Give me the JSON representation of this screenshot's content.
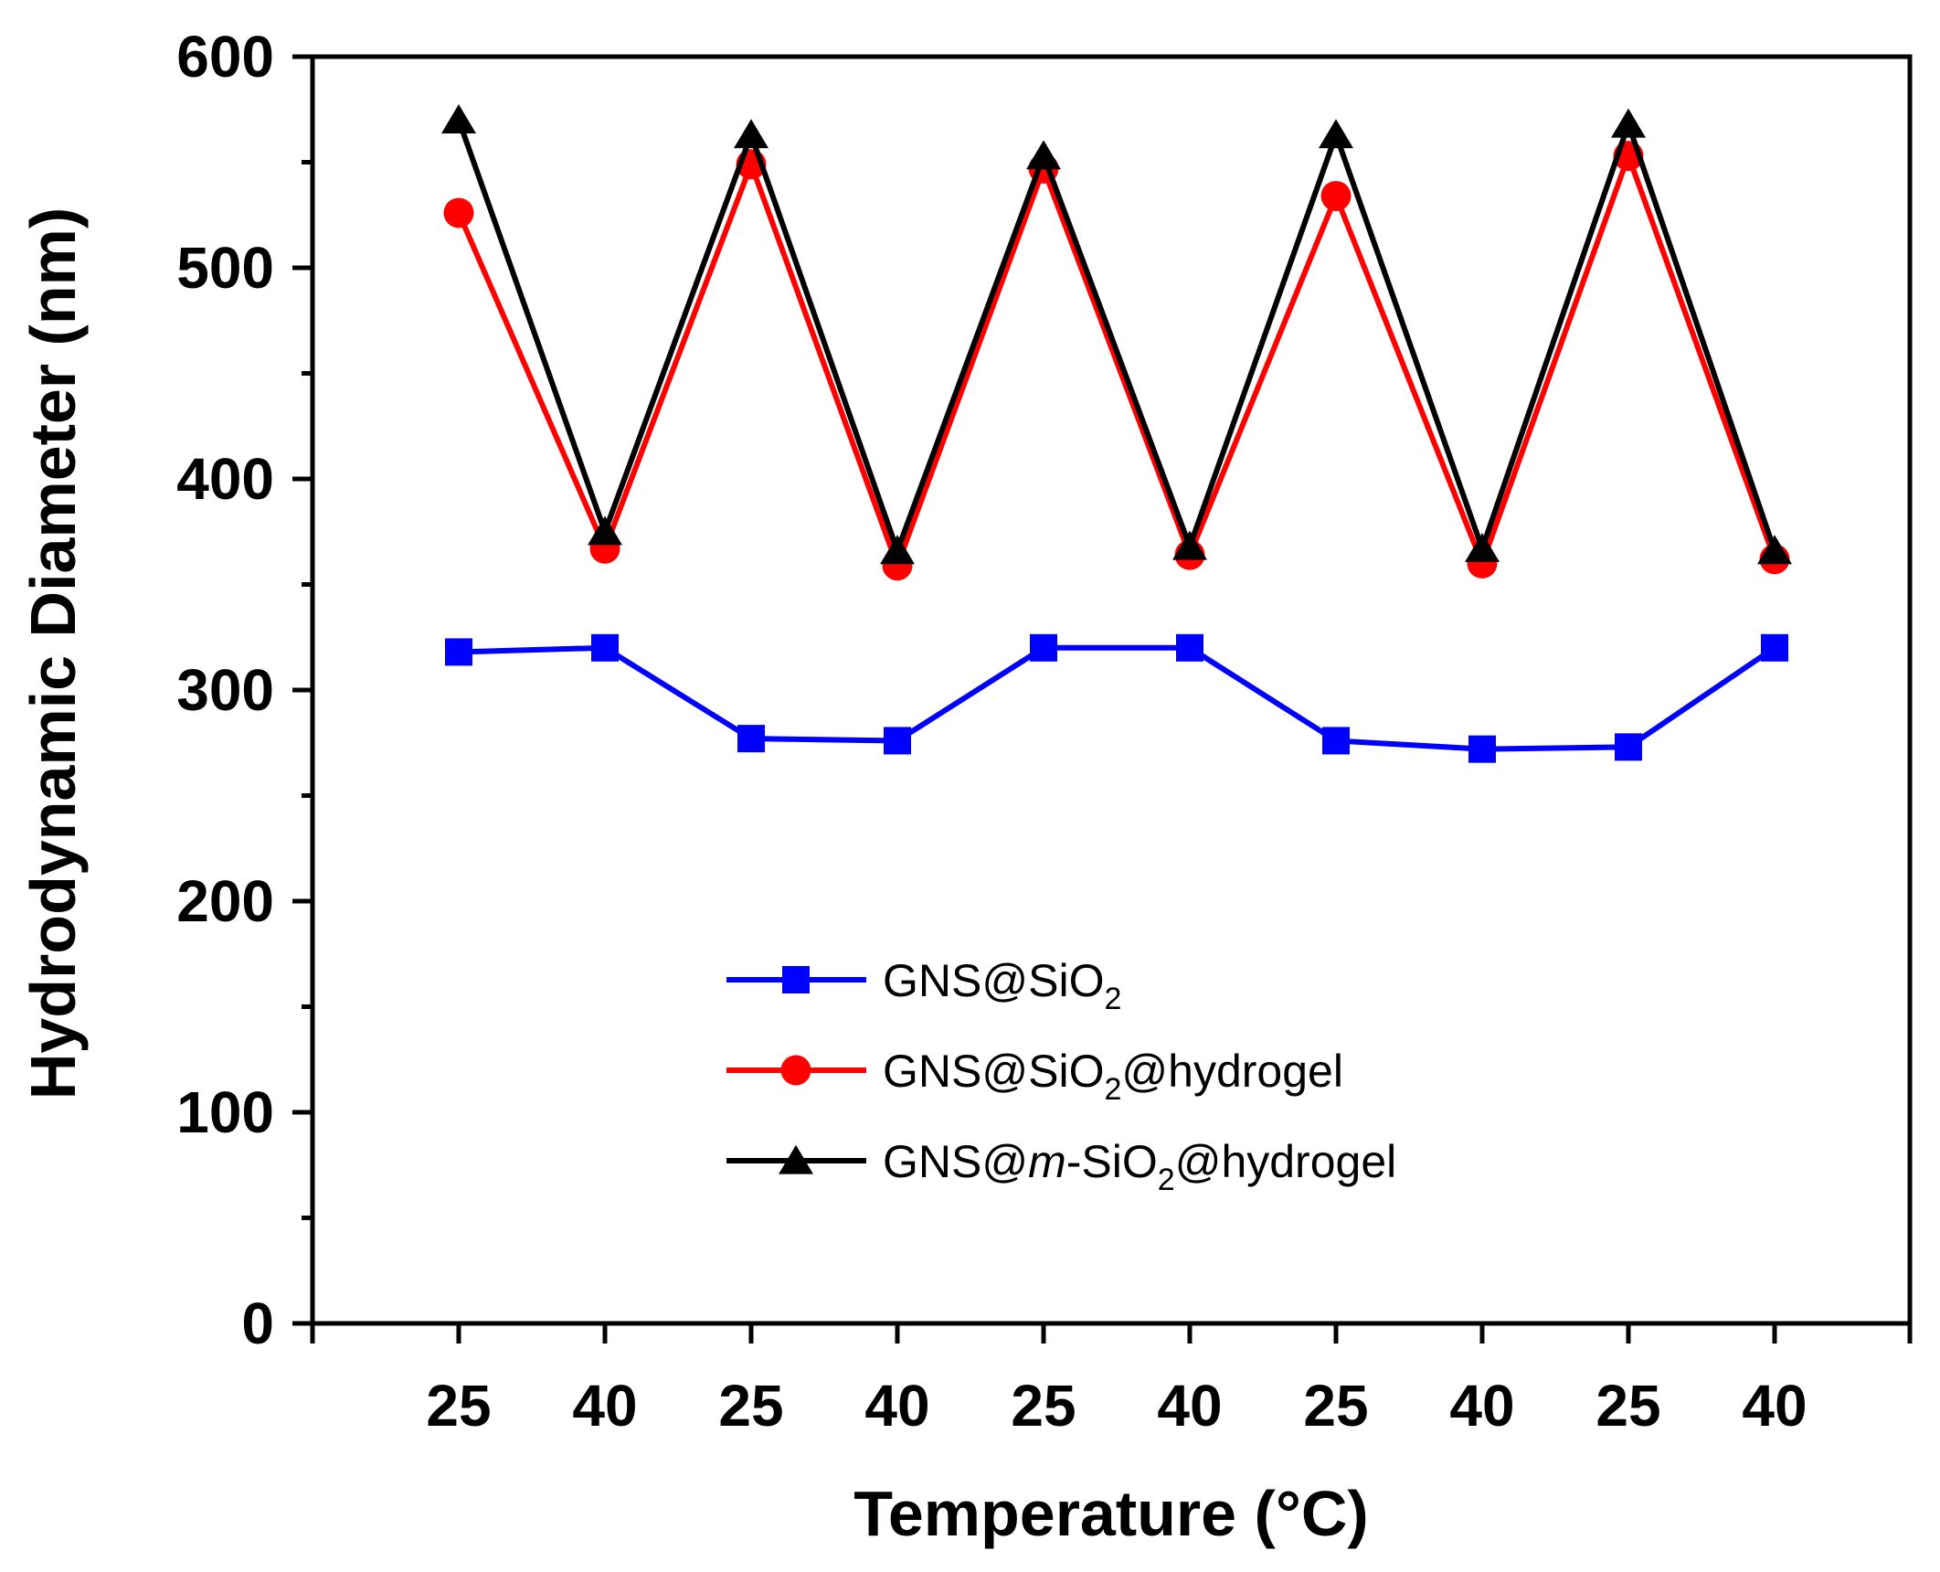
{
  "chart_data": {
    "type": "line",
    "title": "",
    "xlabel": "Temperature (°C)",
    "ylabel": "Hydrodynamic Diameter (nm)",
    "ylim": [
      0,
      600
    ],
    "yticks": [
      0,
      100,
      200,
      300,
      400,
      500,
      600
    ],
    "categories": [
      "25",
      "40",
      "25",
      "40",
      "25",
      "40",
      "25",
      "40",
      "25",
      "40"
    ],
    "grid": false,
    "legend_position": "lower-center",
    "series": [
      {
        "name": "GNS@SiO2",
        "label_parts": [
          {
            "t": "GNS@SiO"
          },
          {
            "t": "2",
            "sub": true
          }
        ],
        "color": "#0000ff",
        "marker": "square",
        "values": [
          318,
          320,
          277,
          276,
          320,
          320,
          276,
          272,
          273,
          320
        ]
      },
      {
        "name": "GNS@SiO2@hydrogel",
        "label_parts": [
          {
            "t": "GNS@SiO"
          },
          {
            "t": "2",
            "sub": true
          },
          {
            "t": "@hydrogel"
          }
        ],
        "color": "#ff0000",
        "marker": "circle",
        "values": [
          526,
          367,
          549,
          359,
          547,
          364,
          534,
          360,
          553,
          362
        ]
      },
      {
        "name": "GNS@m-SiO2@hydrogel",
        "label_parts": [
          {
            "t": "GNS@"
          },
          {
            "t": "m",
            "italic": true
          },
          {
            "t": "-SiO"
          },
          {
            "t": "2",
            "sub": true
          },
          {
            "t": "@hydrogel"
          }
        ],
        "color": "#000000",
        "marker": "triangle",
        "values": [
          570,
          375,
          563,
          366,
          553,
          368,
          563,
          367,
          568,
          366
        ]
      }
    ]
  }
}
